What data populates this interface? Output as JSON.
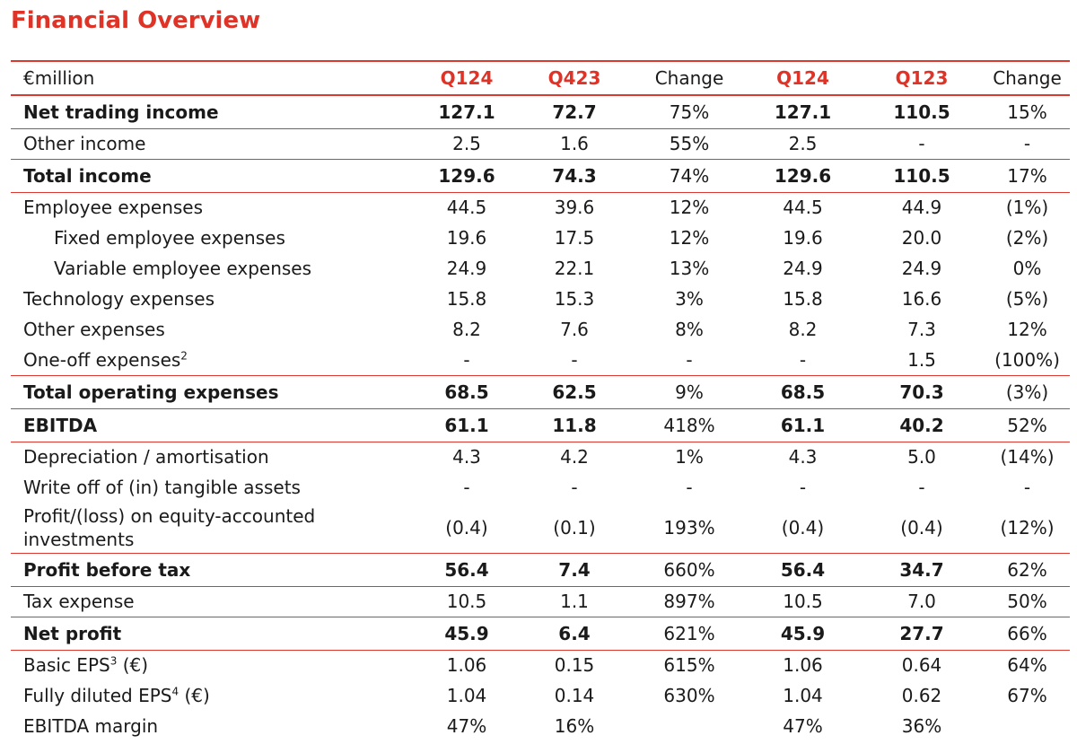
{
  "title": "Financial Overview",
  "header": [
    "€million",
    "Q124",
    "Q423",
    "Change",
    "Q124",
    "Q123",
    "Change"
  ],
  "rows": [
    {
      "label": "Net trading income",
      "sup": "",
      "values": [
        "127.1",
        "72.7",
        "75%",
        "127.1",
        "110.5",
        "15%"
      ]
    },
    {
      "label": "Other income",
      "sup": "",
      "values": [
        "2.5",
        "1.6",
        "55%",
        "2.5",
        "-",
        "-"
      ]
    },
    {
      "label": "Total income",
      "sup": "",
      "values": [
        "129.6",
        "74.3",
        "74%",
        "129.6",
        "110.5",
        "17%"
      ]
    },
    {
      "label": "Employee expenses",
      "sup": "",
      "values": [
        "44.5",
        "39.6",
        "12%",
        "44.5",
        "44.9",
        "(1%)"
      ]
    },
    {
      "label": "Fixed employee expenses",
      "sup": "",
      "values": [
        "19.6",
        "17.5",
        "12%",
        "19.6",
        "20.0",
        "(2%)"
      ]
    },
    {
      "label": "Variable employee expenses",
      "sup": "",
      "values": [
        "24.9",
        "22.1",
        "13%",
        "24.9",
        "24.9",
        "0%"
      ]
    },
    {
      "label": "Technology expenses",
      "sup": "",
      "values": [
        "15.8",
        "15.3",
        "3%",
        "15.8",
        "16.6",
        "(5%)"
      ]
    },
    {
      "label": "Other expenses",
      "sup": "",
      "values": [
        "8.2",
        "7.6",
        "8%",
        "8.2",
        "7.3",
        "12%"
      ]
    },
    {
      "label": "One-off expenses",
      "sup": "2",
      "values": [
        "-",
        "-",
        "-",
        "-",
        "1.5",
        "(100%)"
      ]
    },
    {
      "label": "Total operating expenses",
      "sup": "",
      "values": [
        "68.5",
        "62.5",
        "9%",
        "68.5",
        "70.3",
        "(3%)"
      ]
    },
    {
      "label": "EBITDA",
      "sup": "",
      "values": [
        "61.1",
        "11.8",
        "418%",
        "61.1",
        "40.2",
        "52%"
      ]
    },
    {
      "label": "Depreciation / amortisation",
      "sup": "",
      "values": [
        "4.3",
        "4.2",
        "1%",
        "4.3",
        "5.0",
        "(14%)"
      ]
    },
    {
      "label": "Write off of (in) tangible assets",
      "sup": "",
      "values": [
        "-",
        "-",
        "-",
        "-",
        "-",
        "-"
      ]
    },
    {
      "label": "Profit/(loss) on equity-accounted investments",
      "sup": "",
      "values": [
        "(0.4)",
        "(0.1)",
        "193%",
        "(0.4)",
        "(0.4)",
        "(12%)"
      ]
    },
    {
      "label": "Profit before tax",
      "sup": "",
      "values": [
        "56.4",
        "7.4",
        "660%",
        "56.4",
        "34.7",
        "62%"
      ]
    },
    {
      "label": "Tax expense",
      "sup": "",
      "values": [
        "10.5",
        "1.1",
        "897%",
        "10.5",
        "7.0",
        "50%"
      ]
    },
    {
      "label": "Net profit",
      "sup": "",
      "values": [
        "45.9",
        "6.4",
        "621%",
        "45.9",
        "27.7",
        "66%"
      ]
    },
    {
      "label": "Basic EPS",
      "sup": "3",
      "suffix": " (€)",
      "values": [
        "1.06",
        "0.15",
        "615%",
        "1.06",
        "0.64",
        "64%"
      ]
    },
    {
      "label": "Fully diluted EPS",
      "sup": "4",
      "suffix": " (€)",
      "values": [
        "1.04",
        "0.14",
        "630%",
        "1.04",
        "0.62",
        "67%"
      ]
    },
    {
      "label": "EBITDA margin",
      "sup": "",
      "values": [
        "47%",
        "16%",
        "",
        "47%",
        "36%",
        ""
      ]
    }
  ],
  "colors": {
    "accent": "#e03327",
    "rule": "#d9392e"
  }
}
